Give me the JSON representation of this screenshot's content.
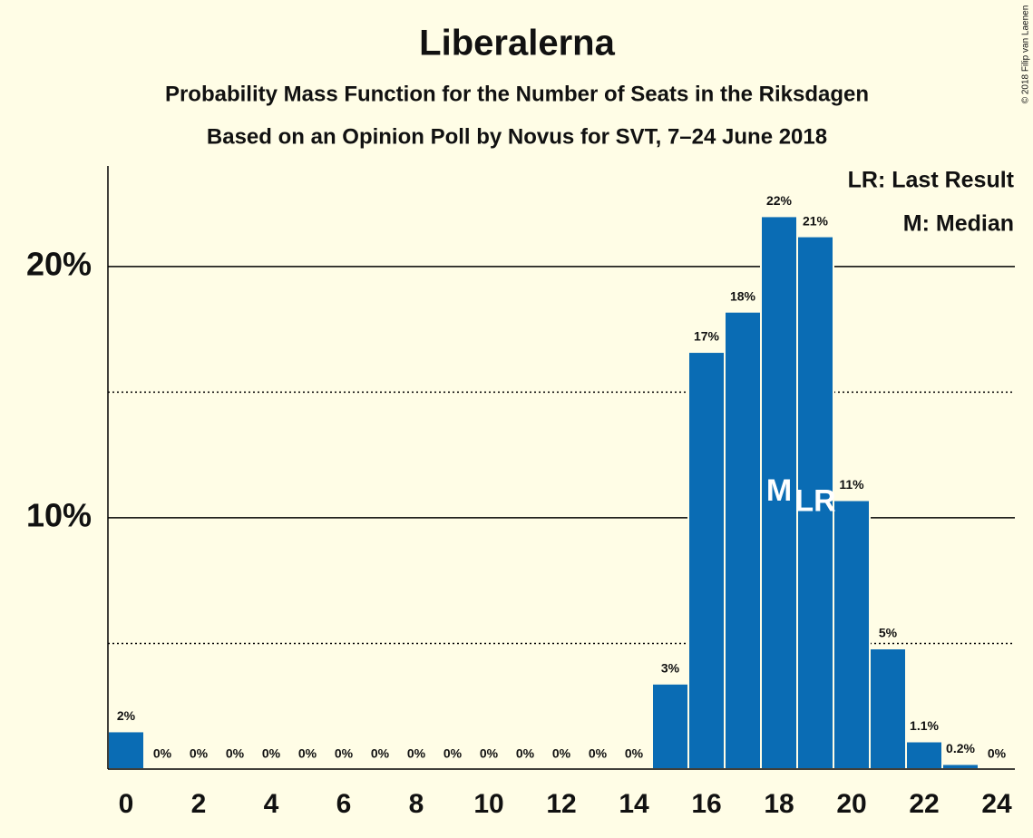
{
  "chart_data": {
    "type": "bar",
    "title": "Liberalerna",
    "subtitle": "Probability Mass Function for the Number of Seats in the Riksdagen",
    "subtitle2": "Based on an Opinion Poll by Novus for SVT, 7–24 June 2018",
    "legend": [
      "LR: Last Result",
      "M: Median"
    ],
    "copyright": "© 2018 Filip van Laenen",
    "x": [
      0,
      1,
      2,
      3,
      4,
      5,
      6,
      7,
      8,
      9,
      10,
      11,
      12,
      13,
      14,
      15,
      16,
      17,
      18,
      19,
      20,
      21,
      22,
      23,
      24
    ],
    "values": [
      1.5,
      0,
      0,
      0,
      0,
      0,
      0,
      0,
      0,
      0,
      0,
      0,
      0,
      0,
      0,
      3.4,
      16.6,
      18.2,
      22.0,
      21.2,
      10.7,
      4.8,
      1.1,
      0.2,
      0
    ],
    "value_labels": [
      "2%",
      "0%",
      "0%",
      "0%",
      "0%",
      "0%",
      "0%",
      "0%",
      "0%",
      "0%",
      "0%",
      "0%",
      "0%",
      "0%",
      "0%",
      "3%",
      "17%",
      "18%",
      "22%",
      "21%",
      "11%",
      "5%",
      "1.1%",
      "0.2%",
      "0%"
    ],
    "color": "#0a6cb4",
    "xlim": [
      -0.5,
      24.5
    ],
    "xticks": [
      0,
      2,
      4,
      6,
      8,
      10,
      12,
      14,
      16,
      18,
      20,
      22,
      24
    ],
    "ylim": [
      0,
      24
    ],
    "yticks": [
      {
        "value": 10,
        "label": "10%"
      },
      {
        "value": 20,
        "label": "20%"
      }
    ],
    "minor_yticks": [
      5,
      15
    ],
    "markers": [
      {
        "x": 18,
        "label": "M"
      },
      {
        "x": 19,
        "label": "LR"
      }
    ]
  }
}
